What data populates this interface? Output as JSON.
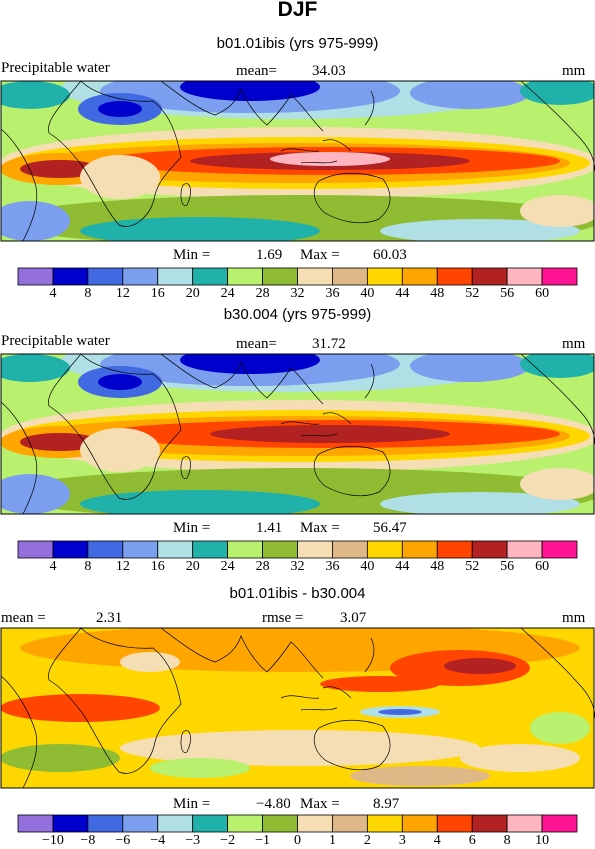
{
  "title": "DJF",
  "colors": {
    "cmap": [
      "#9370db",
      "#0000cd",
      "#4169e1",
      "#7b9eee",
      "#b0e0e6",
      "#20b2aa",
      "#b9f06e",
      "#8fbc32",
      "#f5deb3",
      "#deb887",
      "#ffd700",
      "#ffa500",
      "#ff4500",
      "#b22222",
      "#ffb6c1",
      "#ff1493"
    ]
  },
  "chart_data": [
    {
      "type": "heatmap",
      "title": "b01.01ibis (yrs 975-999)",
      "variable": "Precipitable water",
      "mean_label": "mean=",
      "mean": "34.03",
      "units": "mm",
      "min_label": "Min =",
      "min": "1.69",
      "max_label": "Max =",
      "max": "60.03",
      "colorbar_levels": [
        "4",
        "8",
        "12",
        "16",
        "20",
        "24",
        "28",
        "32",
        "36",
        "40",
        "44",
        "48",
        "52",
        "56",
        "60"
      ]
    },
    {
      "type": "heatmap",
      "title": "b30.004 (yrs 975-999)",
      "variable": "Precipitable water",
      "mean_label": "mean=",
      "mean": "31.72",
      "units": "mm",
      "min_label": "Min =",
      "min": "1.41",
      "max_label": "Max =",
      "max": "56.47",
      "colorbar_levels": [
        "4",
        "8",
        "12",
        "16",
        "20",
        "24",
        "28",
        "32",
        "36",
        "40",
        "44",
        "48",
        "52",
        "56",
        "60"
      ]
    },
    {
      "type": "heatmap",
      "title": "b01.01ibis - b30.004",
      "mean_label": "mean =",
      "mean": "2.31",
      "rmse_label": "rmse =",
      "rmse": "3.07",
      "units": "mm",
      "min_label": "Min =",
      "min": "−4.80",
      "max_label": "Max =",
      "max": "8.97",
      "colorbar_levels": [
        "−10",
        "−8",
        "−6",
        "−4",
        "−3",
        "−2",
        "−1",
        "0",
        "1",
        "2",
        "3",
        "4",
        "6",
        "8",
        "10"
      ]
    }
  ]
}
